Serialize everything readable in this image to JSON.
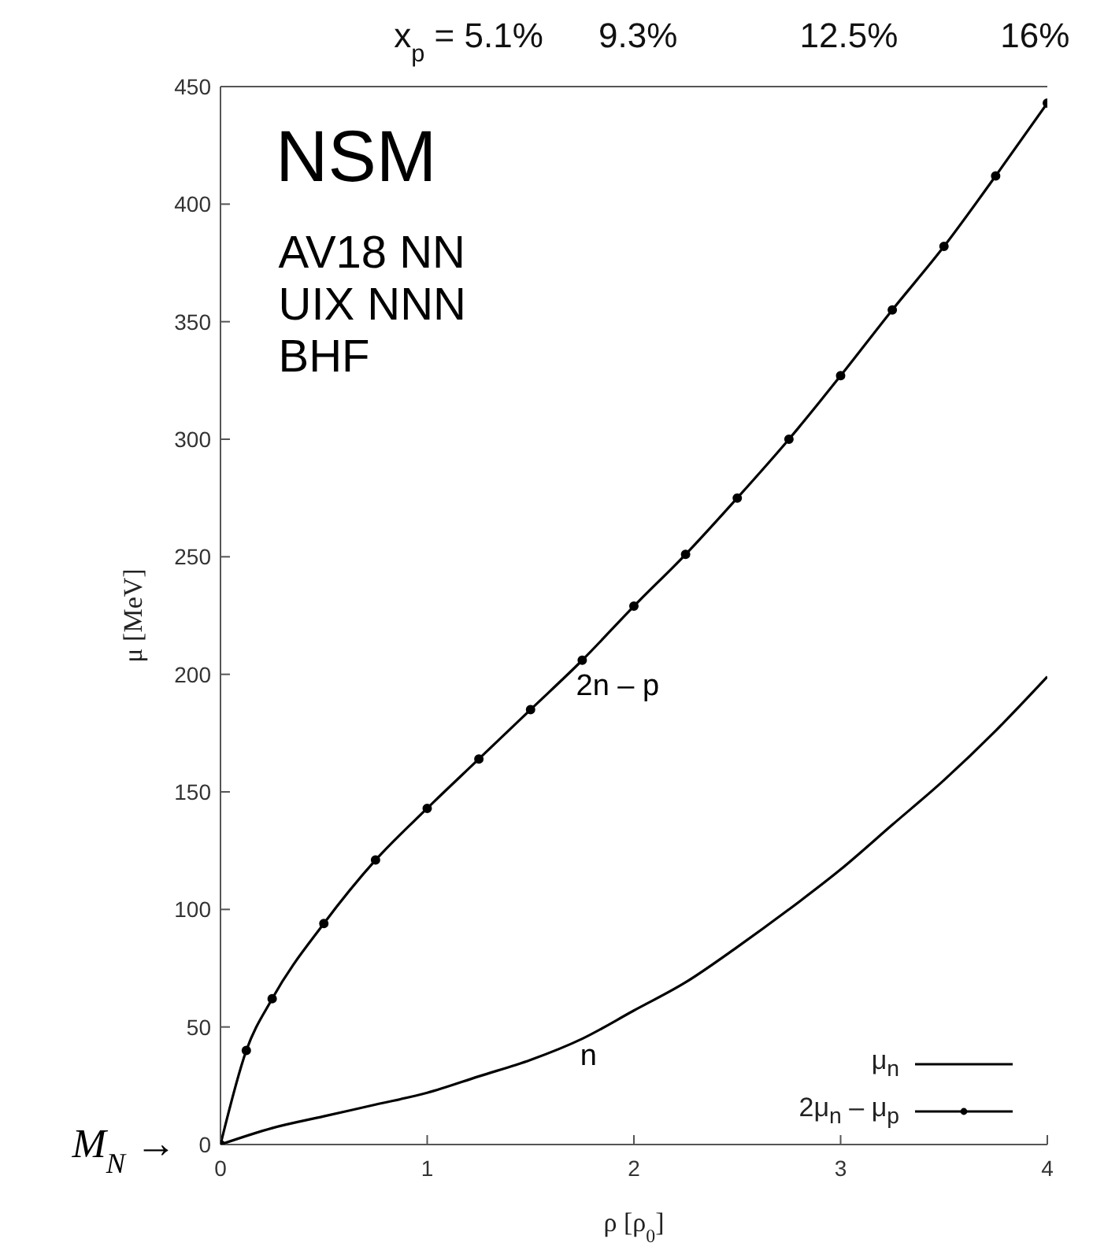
{
  "chart_data": {
    "type": "line",
    "title": "NSM",
    "xlabel": "ρ  [ρ$_{0}$]",
    "ylabel": "μ  [MeV]",
    "xlim": [
      0,
      4
    ],
    "xticks": [
      0,
      1,
      2,
      3,
      4
    ],
    "ylim": [
      0,
      450
    ],
    "yticks": [
      0,
      50,
      100,
      150,
      200,
      250,
      300,
      350,
      400,
      450
    ],
    "grid": false,
    "legend": "bottom right",
    "line_style": "solid",
    "series": [
      {
        "name": "μ$_{n}$",
        "color": "#000000",
        "marker": "none",
        "x": [
          0,
          0.25,
          0.5,
          0.75,
          1,
          1.25,
          1.5,
          1.75,
          2,
          2.25,
          2.5,
          2.75,
          3,
          3.25,
          3.5,
          3.75,
          4
        ],
        "values": [
          0,
          7,
          12,
          17,
          22,
          29,
          36,
          45,
          57,
          69,
          84,
          100,
          117,
          136,
          155,
          176,
          199
        ]
      },
      {
        "name": "2μ$_{n}$ – μ$_{p}$",
        "color": "#000000",
        "marker": "circle",
        "x": [
          0,
          0.125,
          0.25,
          0.5,
          0.75,
          1,
          1.25,
          1.5,
          1.75,
          2,
          2.25,
          2.5,
          2.75,
          3,
          3.25,
          3.5,
          3.75,
          4
        ],
        "values": [
          0,
          40,
          62,
          94,
          121,
          143,
          164,
          185,
          206,
          229,
          251,
          275,
          300,
          327,
          355,
          382,
          412,
          443
        ]
      }
    ],
    "annotations": [
      "AV18 NN",
      "UIX NNN",
      "BHF",
      "2n – p",
      "n",
      {
        "text": "M$_{N}$ →",
        "x": 0,
        "y": 0
      },
      "x$_{p}$ =  5.1%",
      "9.3%",
      "12.5%",
      "16%"
    ]
  }
}
